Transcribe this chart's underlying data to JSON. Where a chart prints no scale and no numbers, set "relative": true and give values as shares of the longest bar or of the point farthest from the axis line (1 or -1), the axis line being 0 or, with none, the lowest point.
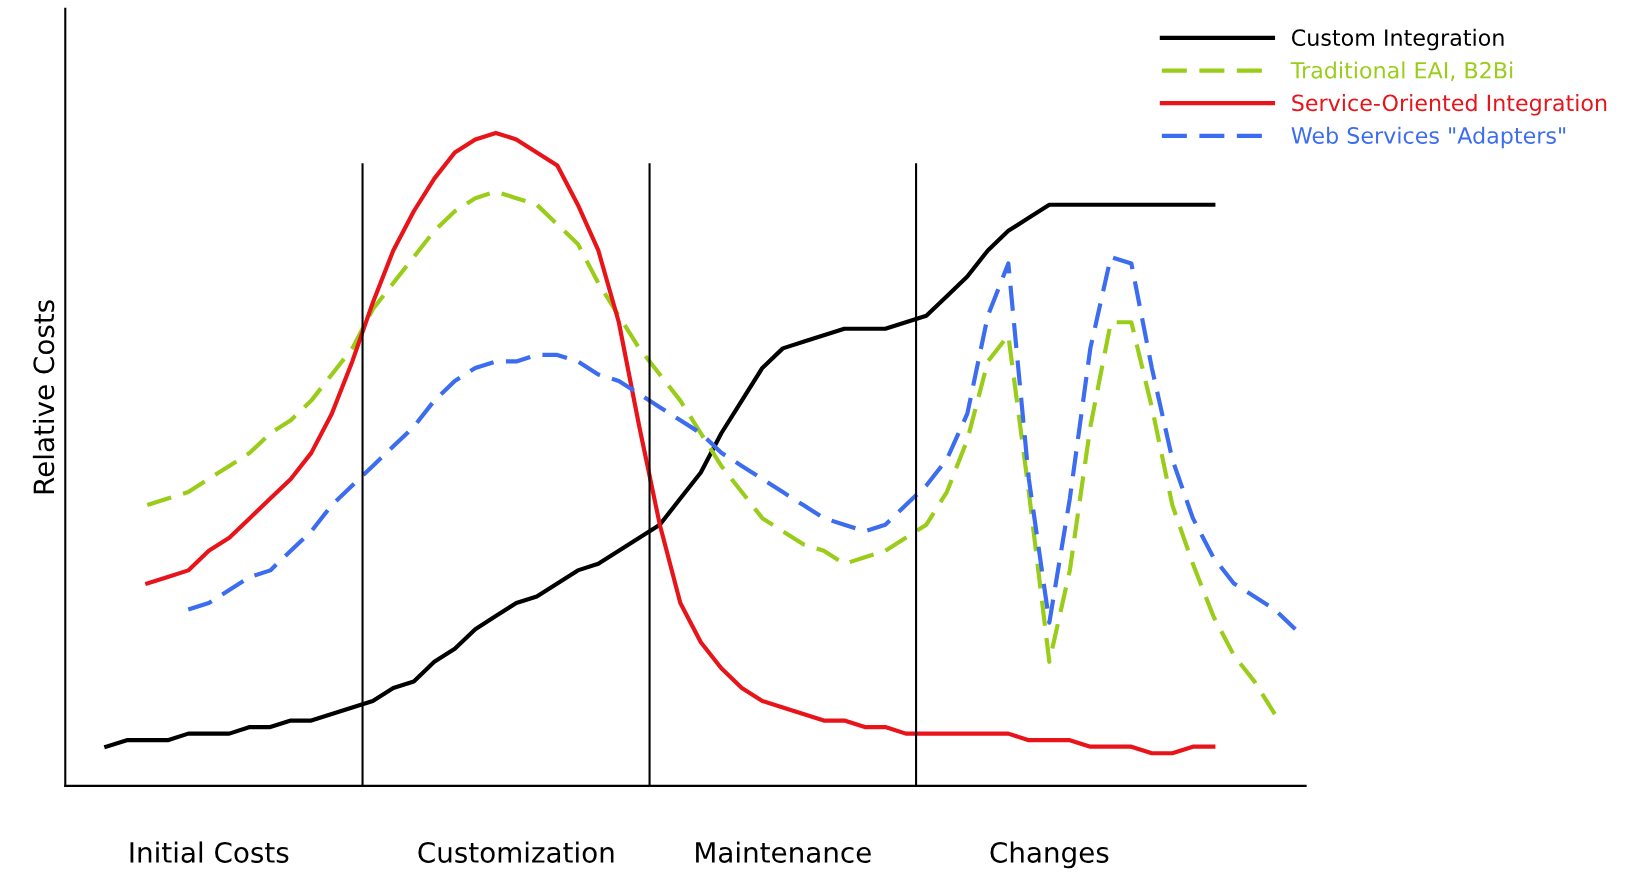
{
  "chart_data": {
    "type": "line",
    "relative": true,
    "ylabel": "Relative Costs",
    "legend": "top right",
    "grid": false,
    "categories": [
      null,
      null,
      null,
      null,
      null,
      null,
      "Initial Costs",
      null,
      null,
      null,
      null,
      null,
      null,
      null,
      null,
      null,
      null,
      null,
      null,
      null,
      null,
      "Customization",
      null,
      null,
      null,
      null,
      null,
      null,
      null,
      null,
      null,
      null,
      null,
      null,
      "Maintenance",
      null,
      null,
      null,
      null,
      null,
      null,
      null,
      null,
      null,
      null,
      null,
      null,
      "Changes",
      null,
      null,
      null,
      null,
      null,
      null,
      null,
      null,
      null,
      null,
      null,
      null
    ],
    "series": [
      {
        "name": "Custom Integration",
        "color": "#000000",
        "line_style": "solid",
        "values": [
          null,
          0.06,
          0.07,
          0.07,
          0.07,
          0.08,
          0.08,
          0.08,
          0.09,
          0.09,
          0.1,
          0.1,
          0.11,
          0.12,
          0.13,
          0.15,
          0.16,
          0.19,
          0.21,
          0.24,
          0.26,
          0.28,
          0.29,
          0.31,
          0.33,
          0.34,
          0.36,
          0.38,
          0.4,
          0.44,
          0.48,
          0.54,
          0.59,
          0.64,
          0.67,
          0.68,
          0.69,
          0.7,
          0.7,
          0.7,
          0.71,
          0.72,
          0.75,
          0.78,
          0.82,
          0.85,
          0.87,
          0.89,
          0.89,
          0.89,
          0.89,
          0.89,
          0.89,
          0.89,
          0.89,
          0.89,
          null,
          null,
          null,
          null
        ]
      },
      {
        "name": "Traditional EAI, B2Bi",
        "color": "#9acd1a",
        "line_style": "dashed",
        "values": [
          null,
          null,
          null,
          0.43,
          0.44,
          0.45,
          0.47,
          0.49,
          0.51,
          0.54,
          0.56,
          0.59,
          0.63,
          0.67,
          0.73,
          0.77,
          0.81,
          0.85,
          0.88,
          0.9,
          0.91,
          0.9,
          0.89,
          0.86,
          0.83,
          0.77,
          0.72,
          0.67,
          0.63,
          0.59,
          0.54,
          0.49,
          0.45,
          0.41,
          0.39,
          0.37,
          0.36,
          0.34,
          0.35,
          0.36,
          0.38,
          0.4,
          0.45,
          0.53,
          0.65,
          0.69,
          0.45,
          0.19,
          0.33,
          0.55,
          0.71,
          0.71,
          0.58,
          0.43,
          0.34,
          0.26,
          0.2,
          0.16,
          0.11,
          null
        ]
      },
      {
        "name": "Service-Oriented Integration",
        "color": "#e8141a",
        "line_style": "solid",
        "values": [
          null,
          null,
          null,
          0.31,
          0.32,
          0.33,
          0.36,
          0.38,
          0.41,
          0.44,
          0.47,
          0.51,
          0.57,
          0.65,
          0.74,
          0.82,
          0.88,
          0.93,
          0.97,
          0.99,
          1.0,
          0.99,
          0.97,
          0.95,
          0.89,
          0.82,
          0.71,
          0.55,
          0.4,
          0.28,
          0.22,
          0.18,
          0.15,
          0.13,
          0.12,
          0.11,
          0.1,
          0.1,
          0.09,
          0.09,
          0.08,
          0.08,
          0.08,
          0.08,
          0.08,
          0.08,
          0.07,
          0.07,
          0.07,
          0.06,
          0.06,
          0.06,
          0.05,
          0.05,
          0.06,
          0.06,
          null,
          null,
          null,
          null
        ]
      },
      {
        "name": "Web Services \"Adapters\"",
        "color": "#3c6cf0",
        "line_style": "dashed",
        "values": [
          null,
          null,
          null,
          null,
          null,
          0.27,
          0.28,
          0.3,
          0.32,
          0.33,
          0.36,
          0.39,
          0.43,
          0.46,
          0.49,
          0.52,
          0.55,
          0.59,
          0.62,
          0.64,
          0.65,
          0.65,
          0.66,
          0.66,
          0.65,
          0.63,
          0.62,
          0.6,
          0.58,
          0.56,
          0.54,
          0.51,
          0.49,
          0.47,
          0.45,
          0.43,
          0.41,
          0.4,
          0.39,
          0.4,
          0.43,
          0.46,
          0.5,
          0.57,
          0.72,
          0.8,
          0.47,
          0.25,
          0.44,
          0.67,
          0.81,
          0.8,
          0.64,
          0.5,
          0.41,
          0.35,
          0.31,
          0.29,
          0.27,
          0.24
        ]
      }
    ]
  }
}
